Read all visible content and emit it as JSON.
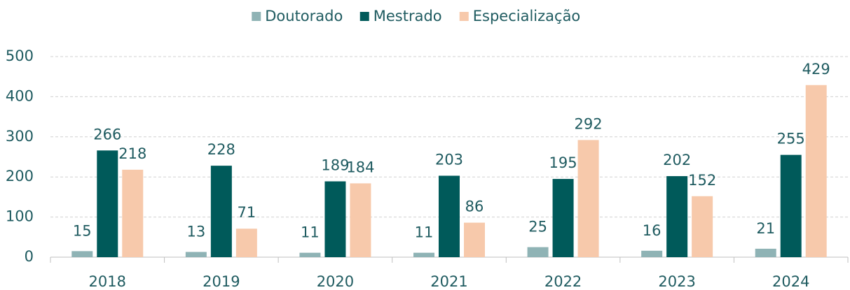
{
  "chart_data": {
    "type": "bar",
    "categories": [
      "2018",
      "2019",
      "2020",
      "2021",
      "2022",
      "2023",
      "2024"
    ],
    "series": [
      {
        "name": "Doutorado",
        "color": "#8fb3b5",
        "values": [
          15,
          13,
          11,
          11,
          25,
          16,
          21
        ]
      },
      {
        "name": "Mestrado",
        "color": "#005a5a",
        "values": [
          266,
          228,
          189,
          203,
          195,
          202,
          255
        ]
      },
      {
        "name": "Especialização",
        "color": "#f7c9ab",
        "values": [
          218,
          71,
          184,
          86,
          292,
          152,
          429
        ]
      }
    ],
    "ylim": [
      0,
      500
    ],
    "yticks": [
      0,
      100,
      200,
      300,
      400,
      500
    ],
    "grid": true,
    "legend": "top"
  }
}
